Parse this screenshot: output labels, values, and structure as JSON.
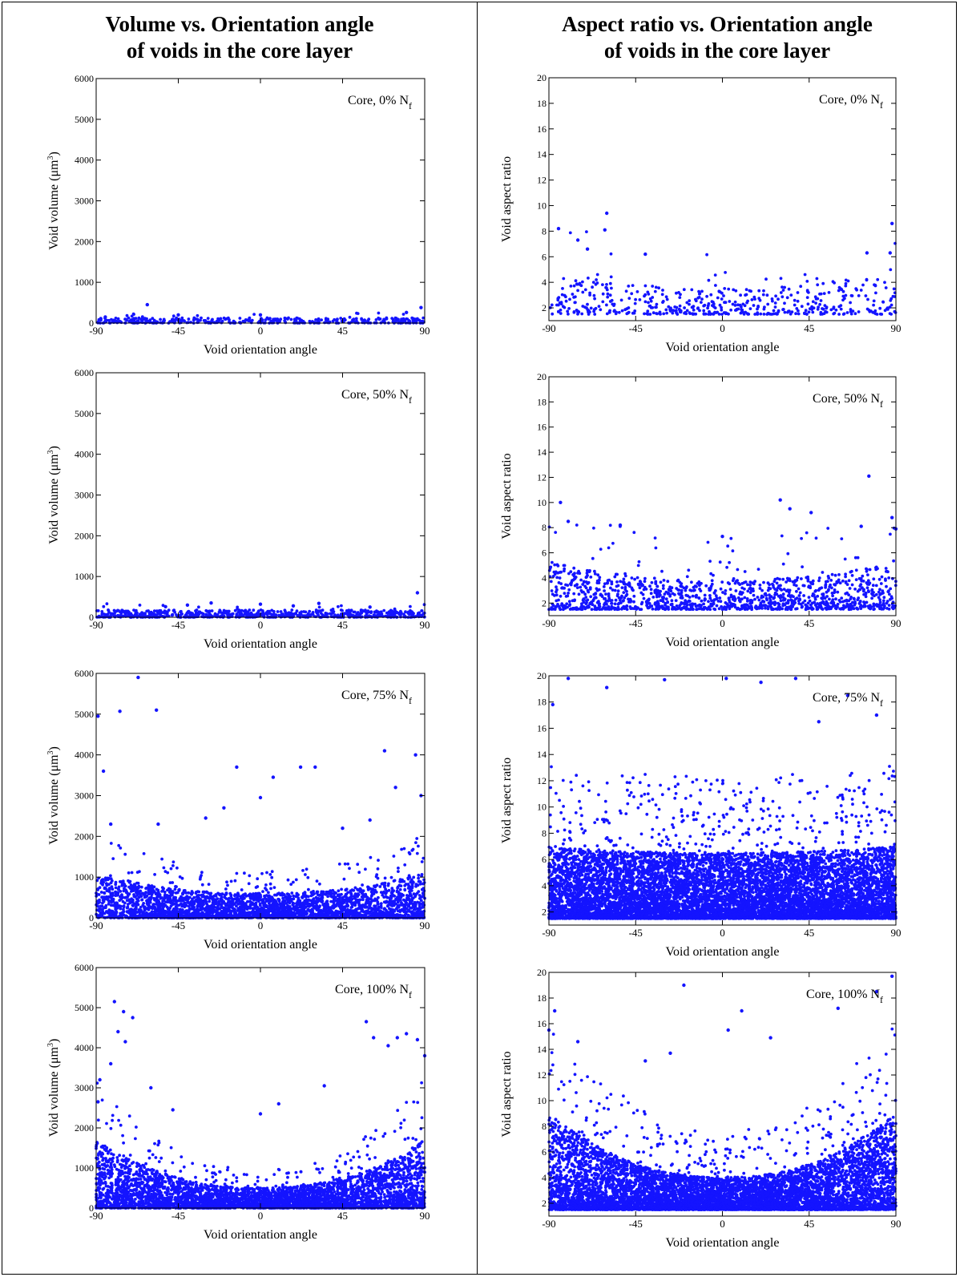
{
  "columns": [
    {
      "title_line1": "Volume vs. Orientation angle",
      "title_line2": "of voids  in the core layer"
    },
    {
      "title_line1": "Aspect ratio vs. Orientation angle",
      "title_line2": "of voids in the core layer"
    }
  ],
  "colors": {
    "points": "#1414ff",
    "axes": "#000000",
    "background": "#ffffff"
  },
  "chart_data": [
    {
      "id": "vol-0",
      "type": "scatter",
      "annotation": "Core, 0% N",
      "annotation_sub": "f",
      "xlabel": "Void orientation angle",
      "ylabel": "Void volume (μm",
      "ylabel_sup": "3",
      "ylabel_tail": ")",
      "xlim": [
        -90,
        90
      ],
      "ylim": [
        0,
        6000
      ],
      "xticks": [
        -90,
        -45,
        0,
        45,
        90
      ],
      "yticks": [
        0,
        1000,
        2000,
        3000,
        4000,
        5000,
        6000
      ],
      "n_points": 420,
      "bulk_max": 130,
      "u_curve": 0,
      "outliers": [
        [
          -62,
          450
        ],
        [
          -45,
          200
        ],
        [
          0,
          200
        ],
        [
          88,
          380
        ],
        [
          80,
          260
        ],
        [
          -85,
          150
        ]
      ]
    },
    {
      "id": "ar-0",
      "type": "scatter",
      "annotation": "Core, 0% N",
      "annotation_sub": "f",
      "xlabel": "Void orientation angle",
      "ylabel": "Void aspect ratio",
      "xlim": [
        -90,
        90
      ],
      "ylim": [
        1,
        20
      ],
      "xticks": [
        -90,
        -45,
        0,
        45,
        90
      ],
      "yticks": [
        2,
        4,
        6,
        8,
        10,
        12,
        14,
        16,
        18,
        20
      ],
      "n_points": 520,
      "bulk_max": 3.5,
      "u_curve": 1.5,
      "outliers": [
        [
          -60,
          9.4
        ],
        [
          -61,
          8.1
        ],
        [
          -85,
          8.2
        ],
        [
          -75,
          7.3
        ],
        [
          88,
          8.6
        ],
        [
          75,
          6.3
        ],
        [
          -40,
          6.2
        ],
        [
          87,
          6.3
        ],
        [
          -70,
          6.6
        ]
      ]
    },
    {
      "id": "vol-50",
      "type": "scatter",
      "annotation": "Core, 50% N",
      "annotation_sub": "f",
      "xlabel": "Void orientation angle",
      "ylabel": "Void volume (μm",
      "ylabel_sup": "3",
      "ylabel_tail": ")",
      "xlim": [
        -90,
        90
      ],
      "ylim": [
        0,
        6000
      ],
      "xticks": [
        -90,
        -45,
        0,
        45,
        90
      ],
      "yticks": [
        0,
        1000,
        2000,
        3000,
        4000,
        5000,
        6000
      ],
      "n_points": 700,
      "bulk_max": 180,
      "u_curve": 0,
      "outliers": [
        [
          86,
          600
        ],
        [
          -27,
          350
        ],
        [
          0,
          320
        ],
        [
          32,
          340
        ],
        [
          -40,
          300
        ],
        [
          18,
          280
        ],
        [
          -52,
          260
        ],
        [
          60,
          250
        ]
      ]
    },
    {
      "id": "ar-50",
      "type": "scatter",
      "annotation": "Core, 50% N",
      "annotation_sub": "f",
      "xlabel": "Void orientation angle",
      "ylabel": "Void aspect ratio",
      "xlim": [
        -90,
        90
      ],
      "ylim": [
        1,
        20
      ],
      "xticks": [
        -90,
        -45,
        0,
        45,
        90
      ],
      "yticks": [
        2,
        4,
        6,
        8,
        10,
        12,
        14,
        16,
        18,
        20
      ],
      "n_points": 1300,
      "bulk_max": 3.8,
      "u_curve": 1.5,
      "outliers": [
        [
          76,
          12.1
        ],
        [
          30,
          10.2
        ],
        [
          -84,
          10.0
        ],
        [
          35,
          9.5
        ],
        [
          46,
          9.2
        ],
        [
          -80,
          8.5
        ],
        [
          -53,
          8.2
        ],
        [
          88,
          8.8
        ],
        [
          0,
          7.3
        ],
        [
          72,
          8.1
        ],
        [
          90,
          7.9
        ]
      ]
    },
    {
      "id": "vol-75",
      "type": "scatter",
      "annotation": "Core, 75% N",
      "annotation_sub": "f",
      "xlabel": "Void orientation angle",
      "ylabel": "Void volume (μm",
      "ylabel_sup": "3",
      "ylabel_tail": ")",
      "xlim": [
        -90,
        90
      ],
      "ylim": [
        0,
        6000
      ],
      "xticks": [
        -90,
        -45,
        0,
        45,
        90
      ],
      "yticks": [
        0,
        1000,
        2000,
        3000,
        4000,
        5000,
        6000
      ],
      "n_points": 3200,
      "bulk_max": 600,
      "u_curve": 500,
      "outliers": [
        [
          -67,
          5900
        ],
        [
          -57,
          5100
        ],
        [
          -89,
          4950
        ],
        [
          -77,
          5070
        ],
        [
          68,
          4100
        ],
        [
          -13,
          3700
        ],
        [
          7,
          3450
        ],
        [
          22,
          3700
        ],
        [
          30,
          3700
        ],
        [
          -86,
          3600
        ],
        [
          85,
          4000
        ],
        [
          0,
          2950
        ],
        [
          -56,
          2300
        ],
        [
          -82,
          2300
        ],
        [
          -20,
          2700
        ],
        [
          45,
          2200
        ],
        [
          60,
          2400
        ],
        [
          74,
          3200
        ],
        [
          88,
          3000
        ],
        [
          -30,
          2450
        ]
      ]
    },
    {
      "id": "ar-75",
      "type": "scatter",
      "annotation": "Core, 75% N",
      "annotation_sub": "f",
      "xlabel": "Void orientation angle",
      "ylabel": "Void aspect ratio",
      "xlim": [
        -90,
        90
      ],
      "ylim": [
        1,
        20
      ],
      "xticks": [
        -90,
        -45,
        0,
        45,
        90
      ],
      "yticks": [
        2,
        4,
        6,
        8,
        10,
        12,
        14,
        16,
        18,
        20
      ],
      "n_points": 9000,
      "bulk_max": 6.5,
      "u_curve": 0.5,
      "outliers": [
        [
          -80,
          19.8
        ],
        [
          -30,
          19.7
        ],
        [
          2,
          19.8
        ],
        [
          20,
          19.5
        ],
        [
          38,
          19.8
        ],
        [
          -60,
          19.1
        ],
        [
          65,
          18.5
        ],
        [
          -88,
          17.8
        ],
        [
          80,
          17.0
        ],
        [
          50,
          16.5
        ]
      ]
    },
    {
      "id": "vol-100",
      "type": "scatter",
      "annotation": "Core, 100% N",
      "annotation_sub": "f",
      "xlabel": "Void orientation angle",
      "ylabel": "Void volume (μm",
      "ylabel_sup": "3",
      "ylabel_tail": ")",
      "xlim": [
        -90,
        90
      ],
      "ylim": [
        0,
        6000
      ],
      "xticks": [
        -90,
        -45,
        0,
        45,
        90
      ],
      "yticks": [
        0,
        1000,
        2000,
        3000,
        4000,
        5000,
        6000
      ],
      "n_points": 4200,
      "bulk_max": 500,
      "u_curve": 1200,
      "outliers": [
        [
          -80,
          5150
        ],
        [
          -75,
          4900
        ],
        [
          -70,
          4750
        ],
        [
          -78,
          4400
        ],
        [
          -74,
          4150
        ],
        [
          58,
          4650
        ],
        [
          62,
          4250
        ],
        [
          75,
          4250
        ],
        [
          80,
          4350
        ],
        [
          86,
          4200
        ],
        [
          70,
          4050
        ],
        [
          -48,
          2450
        ],
        [
          -82,
          3600
        ],
        [
          -88,
          3200
        ],
        [
          -60,
          3000
        ],
        [
          10,
          2600
        ],
        [
          0,
          2350
        ],
        [
          35,
          3050
        ],
        [
          90,
          3800
        ],
        [
          -89,
          2650
        ]
      ]
    },
    {
      "id": "ar-100",
      "type": "scatter",
      "annotation": "Core, 100% N",
      "annotation_sub": "f",
      "xlabel": "Void orientation angle",
      "ylabel": "Void aspect ratio",
      "xlim": [
        -90,
        90
      ],
      "ylim": [
        1,
        20
      ],
      "xticks": [
        -90,
        -45,
        0,
        45,
        90
      ],
      "yticks": [
        2,
        4,
        6,
        8,
        10,
        12,
        14,
        16,
        18,
        20
      ],
      "n_points": 7000,
      "bulk_max": 4.0,
      "u_curve": 5.0,
      "outliers": [
        [
          -20,
          19.0
        ],
        [
          -87,
          17.0
        ],
        [
          10,
          17.0
        ],
        [
          3,
          15.5
        ],
        [
          -90,
          15.5
        ],
        [
          88,
          19.7
        ],
        [
          80,
          18.5
        ],
        [
          -40,
          13.1
        ],
        [
          -27,
          13.7
        ],
        [
          25,
          14.9
        ],
        [
          -75,
          14.6
        ],
        [
          60,
          17.2
        ]
      ]
    }
  ]
}
